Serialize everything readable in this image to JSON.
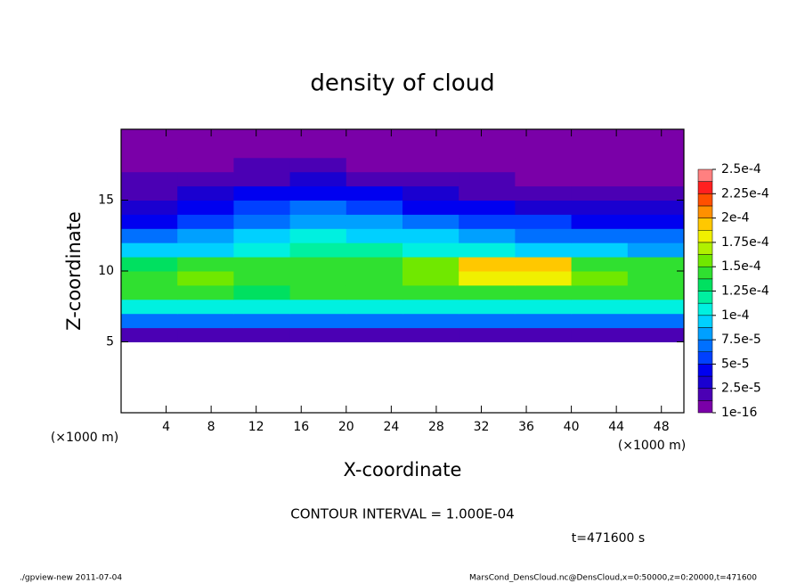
{
  "chart_data": {
    "type": "heatmap",
    "title": "density of cloud",
    "x_label": "X-coordinate",
    "y_label": "Z-coordinate",
    "x_unit": "(×1000 m)",
    "y_unit": "(×1000 m)",
    "contour_note": "CONTOUR INTERVAL = 1.000E-04",
    "time_note": "t=471600 s",
    "footer_left": "./gpview-new   2011-07-04",
    "footer_right": "MarsCond_DensCloud.nc@DensCloud,x=0:50000,z=0:20000,t=471600",
    "xlim": [
      0,
      50
    ],
    "xticks": [
      4,
      8,
      12,
      16,
      20,
      24,
      28,
      32,
      36,
      40,
      44,
      48
    ],
    "ylim": [
      0,
      20
    ],
    "yticks": [
      5,
      10,
      15
    ],
    "x_edges": [
      0,
      5,
      10,
      15,
      20,
      25,
      30,
      35,
      40,
      45,
      50
    ],
    "z_edges": [
      5,
      6,
      7,
      8,
      9,
      10,
      11,
      12,
      13,
      14,
      15,
      16,
      17,
      18,
      19,
      20
    ],
    "values": [
      [
        2e-05,
        2e-05,
        2e-05,
        2e-05,
        2e-05,
        2e-05,
        2e-05,
        2e-05,
        2e-05,
        2e-05
      ],
      [
        6.5e-05,
        6.5e-05,
        6.5e-05,
        6.5e-05,
        6.5e-05,
        6.5e-05,
        6.5e-05,
        6.5e-05,
        6.5e-05,
        6.5e-05
      ],
      [
        0.00011,
        0.00011,
        0.000105,
        0.00011,
        0.00011,
        0.00011,
        0.00011,
        0.00011,
        0.00011,
        0.00011
      ],
      [
        0.00014,
        0.00014,
        0.000135,
        0.00014,
        0.00014,
        0.000145,
        0.00015,
        0.00015,
        0.00014,
        0.00014
      ],
      [
        0.00015,
        0.000155,
        0.000145,
        0.00015,
        0.00015,
        0.00016,
        0.00018,
        0.000185,
        0.00016,
        0.00015
      ],
      [
        0.000135,
        0.00014,
        0.00014,
        0.000145,
        0.000145,
        0.000155,
        0.00019,
        0.00019,
        0.00015,
        0.00014
      ],
      [
        9e-05,
        0.0001,
        0.00011,
        0.00012,
        0.00012,
        0.00011,
        0.000105,
        0.0001,
        9e-05,
        8.5e-05
      ],
      [
        7e-05,
        8e-05,
        9.5e-05,
        0.000105,
        0.0001,
        9e-05,
        8e-05,
        7.5e-05,
        7e-05,
        6.5e-05
      ],
      [
        5e-05,
        6e-05,
        7.5e-05,
        8.5e-05,
        8e-05,
        7e-05,
        6e-05,
        5.5e-05,
        5e-05,
        4.5e-05
      ],
      [
        3.5e-05,
        4.5e-05,
        6e-05,
        6.5e-05,
        6e-05,
        5e-05,
        4e-05,
        3.5e-05,
        3.5e-05,
        3e-05
      ],
      [
        2.5e-05,
        3e-05,
        4e-05,
        4.5e-05,
        4e-05,
        3.5e-05,
        2.5e-05,
        2e-05,
        2e-05,
        2e-05
      ],
      [
        1.5e-05,
        2e-05,
        2.5e-05,
        3e-05,
        2.5e-05,
        2e-05,
        1.5e-05,
        1e-05,
        1e-05,
        1.2e-05
      ],
      [
        8e-06,
        1e-05,
        1.5e-05,
        1.5e-05,
        1.2e-05,
        1e-05,
        8e-06,
        6e-06,
        6e-06,
        8e-06
      ],
      [
        5e-06,
        6e-06,
        8e-06,
        8e-06,
        7e-06,
        6e-06,
        5e-06,
        4e-06,
        4e-06,
        5e-06
      ],
      [
        3e-06,
        4e-06,
        5e-06,
        5e-06,
        4e-06,
        4e-06,
        3e-06,
        3e-06,
        3e-06,
        3e-06
      ]
    ],
    "clim": [
      1e-16,
      0.00025
    ],
    "cticks": [
      1e-16,
      {
        "value": 2.5e-05,
        "label": "2.5e-5"
      },
      {
        "value": 5e-05,
        "label": "5e-5"
      },
      {
        "value": 7.5e-05,
        "label": "7.5e-5"
      },
      {
        "value": 0.0001,
        "label": "1e-4"
      },
      {
        "value": 0.000125,
        "label": "1.25e-4"
      },
      {
        "value": 0.00015,
        "label": "1.5e-4"
      },
      {
        "value": 0.000175,
        "label": "1.75e-4"
      },
      {
        "value": 0.0002,
        "label": "2e-4"
      },
      {
        "value": 0.000225,
        "label": "2.25e-4"
      },
      {
        "value": 0.00025,
        "label": "2.5e-4"
      }
    ],
    "colors": [
      "#7a00a8",
      "#4b00b4",
      "#1a00d0",
      "#0000f0",
      "#0040ff",
      "#0070ff",
      "#00a0ff",
      "#00d0ff",
      "#00f0e0",
      "#00f0a0",
      "#00e060",
      "#30e030",
      "#70e800",
      "#b0f000",
      "#f0f000",
      "#ffc800",
      "#ff9000",
      "#ff5000",
      "#ff2020",
      "#ff8080"
    ]
  }
}
